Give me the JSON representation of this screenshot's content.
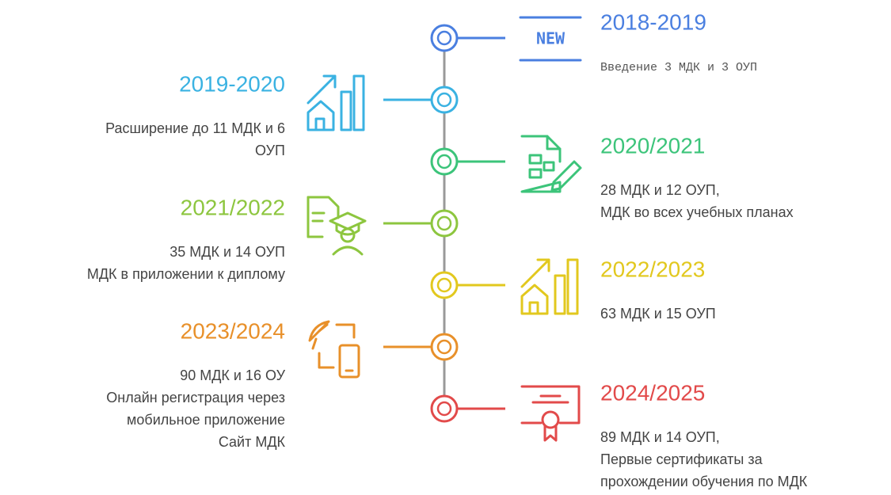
{
  "timeline": {
    "items": [
      {
        "year": "2018-2019",
        "badge": "NEW",
        "color": "#4a7fe0",
        "description": [
          "Введение 3 МДК и 3 ОУП"
        ]
      },
      {
        "year": "2019-2020",
        "color": "#3ab2e2",
        "description": [
          "Расширение до 11 МДК и 6",
          "ОУП"
        ]
      },
      {
        "year": "2020/2021",
        "color": "#3cc47a",
        "description": [
          "28 МДК и 12 ОУП,",
          "МДК во всех учебных планах"
        ]
      },
      {
        "year": "2021/2022",
        "color": "#8dc63f",
        "description": [
          "35 МДК и 14 ОУП",
          "МДК в приложении к диплому"
        ]
      },
      {
        "year": "2022/2023",
        "color": "#e2c81e",
        "description": [
          "63 МДК и 15 ОУП"
        ]
      },
      {
        "year": "2023/2024",
        "color": "#e8902a",
        "description": [
          "90 МДК и 16 ОУ",
          "Онлайн регистрация через",
          "мобильное приложение",
          "Сайт МДК"
        ]
      },
      {
        "year": "2024/2025",
        "color": "#e24a4a",
        "description": [
          "89 МДК и 14 ОУП,",
          "Первые сертификаты за",
          "прохождении обучения по МДК"
        ]
      }
    ]
  }
}
